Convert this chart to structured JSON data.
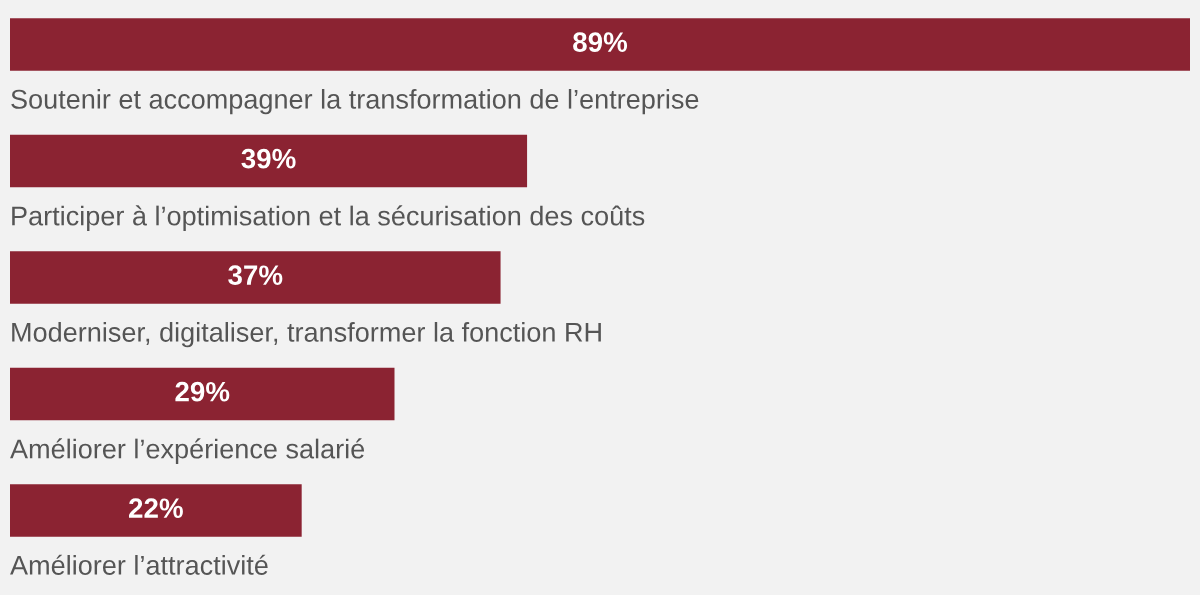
{
  "chart_data": {
    "type": "bar",
    "orientation": "horizontal",
    "categories": [
      "Soutenir et accompagner la transformation de l’entreprise",
      "Participer à l’optimisation et la sécurisation des coûts",
      "Moderniser, digitaliser, transformer la fonction RH",
      "Améliorer l’expérience salarié",
      "Améliorer l’attractivité"
    ],
    "values": [
      89,
      39,
      37,
      29,
      22
    ],
    "value_labels": [
      "89%",
      "39%",
      "37%",
      "29%",
      "22%"
    ],
    "color": "#8b2332"
  }
}
